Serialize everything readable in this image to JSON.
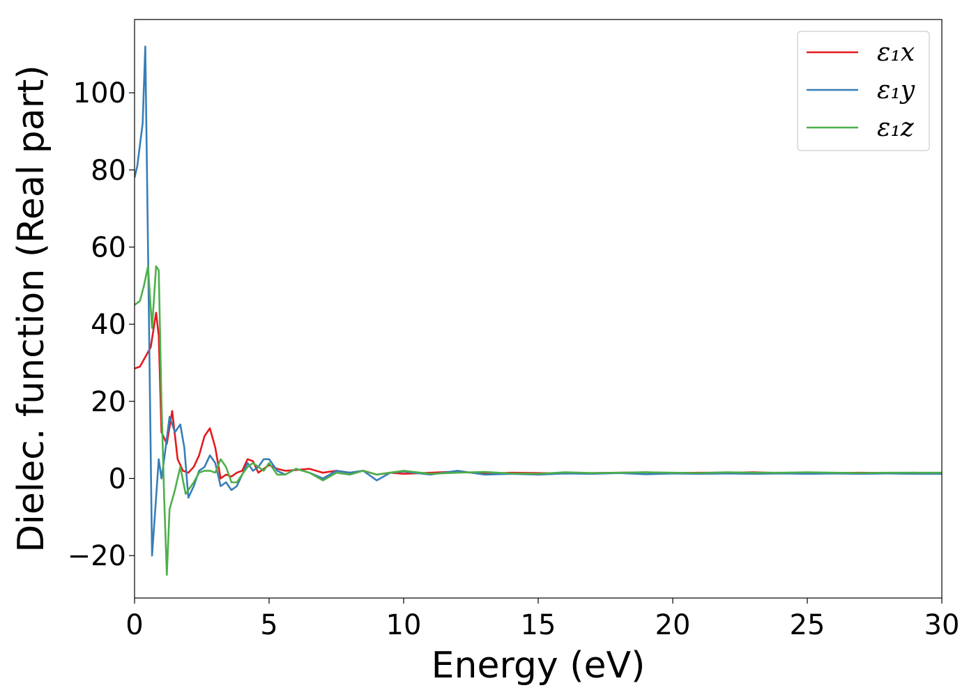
{
  "chart_data": {
    "type": "line",
    "xlabel": "Energy (eV)",
    "ylabel": "Dielec. function (Real part)",
    "xlim": [
      0,
      30
    ],
    "ylim": [
      -31,
      119
    ],
    "xticks": [
      0,
      5,
      10,
      15,
      20,
      25,
      30
    ],
    "xtick_labels": [
      "0",
      "5",
      "10",
      "15",
      "20",
      "25",
      "30"
    ],
    "yticks": [
      -20,
      0,
      20,
      40,
      60,
      80,
      100
    ],
    "ytick_labels": [
      "−20",
      "0",
      "20",
      "40",
      "60",
      "80",
      "100"
    ],
    "grid": false,
    "legend": {
      "position": "top-right"
    },
    "series": [
      {
        "name": "ε₁x",
        "color": "#e41a1c",
        "x": [
          0,
          0.2,
          0.4,
          0.6,
          0.8,
          0.9,
          1.0,
          1.2,
          1.4,
          1.6,
          1.8,
          2.0,
          2.2,
          2.4,
          2.6,
          2.8,
          3.0,
          3.2,
          3.4,
          3.6,
          3.8,
          4.0,
          4.2,
          4.4,
          4.6,
          4.8,
          5.0,
          5.3,
          5.6,
          6.0,
          6.5,
          7.0,
          7.5,
          8.0,
          8.5,
          9.0,
          9.5,
          10,
          11,
          12,
          13,
          14,
          15,
          16,
          17,
          18,
          19,
          20,
          21,
          22,
          23,
          24,
          25,
          26,
          27,
          28,
          29,
          30
        ],
        "y": [
          28.5,
          29,
          31.5,
          34,
          43,
          37,
          12,
          9,
          17.5,
          5,
          2,
          1.5,
          3,
          6,
          11,
          13,
          8,
          0,
          1,
          0.5,
          1.5,
          2,
          5,
          4.5,
          1.5,
          2.5,
          3.5,
          2.5,
          2,
          2.2,
          2.5,
          1.5,
          2,
          1.5,
          2,
          1,
          1.5,
          1.2,
          1.5,
          1.8,
          1.2,
          1.5,
          1.4,
          1.3,
          1.4,
          1.5,
          1.6,
          1.4,
          1.5,
          1.5,
          1.6,
          1.4,
          1.5,
          1.4,
          1.5,
          1.4,
          1.5,
          1.3
        ]
      },
      {
        "name": "ε₁y",
        "color": "#377eb8",
        "x": [
          0,
          0.1,
          0.3,
          0.4,
          0.5,
          0.65,
          0.8,
          0.9,
          1.0,
          1.1,
          1.3,
          1.5,
          1.7,
          1.85,
          2.0,
          2.2,
          2.4,
          2.6,
          2.8,
          3.0,
          3.2,
          3.4,
          3.6,
          3.8,
          4.0,
          4.2,
          4.4,
          4.6,
          4.8,
          5.0,
          5.3,
          5.6,
          6.0,
          6.5,
          7.0,
          7.5,
          8.0,
          8.5,
          9.0,
          9.5,
          10,
          11,
          12,
          13,
          14,
          15,
          16,
          17,
          18,
          19,
          20,
          21,
          22,
          23,
          24,
          25,
          26,
          27,
          28,
          29,
          30
        ],
        "y": [
          78,
          81,
          92,
          112,
          60,
          -20,
          -5,
          5,
          0,
          5,
          16,
          12,
          14,
          8,
          -5,
          -2,
          2,
          3,
          6,
          4,
          -2,
          -1,
          -3,
          -2,
          1,
          4,
          2,
          3,
          5,
          5,
          2,
          1,
          2.5,
          1.5,
          0,
          2,
          1.5,
          2,
          -0.5,
          1.5,
          1.8,
          1,
          2,
          1,
          1.2,
          1,
          1.3,
          1.2,
          1.4,
          1.1,
          1.3,
          1.2,
          1.3,
          1.2,
          1.3,
          1.2,
          1.3,
          1.2,
          1.3,
          1.2,
          1.2
        ]
      },
      {
        "name": "ε₁z",
        "color": "#4daf4a",
        "x": [
          0,
          0.2,
          0.35,
          0.5,
          0.65,
          0.8,
          0.9,
          1.0,
          1.1,
          1.2,
          1.3,
          1.5,
          1.7,
          1.9,
          2.0,
          2.2,
          2.4,
          2.6,
          2.8,
          3.0,
          3.2,
          3.4,
          3.6,
          3.8,
          4.0,
          4.2,
          4.4,
          4.6,
          4.8,
          5.0,
          5.3,
          5.6,
          6.0,
          6.5,
          7.0,
          7.5,
          8.0,
          8.5,
          9.0,
          9.5,
          10,
          11,
          12,
          13,
          14,
          15,
          16,
          17,
          18,
          19,
          20,
          21,
          22,
          23,
          24,
          25,
          26,
          27,
          28,
          29,
          30
        ],
        "y": [
          45,
          46,
          50,
          55,
          39,
          55,
          54,
          20,
          -5,
          -25,
          -8,
          -3,
          3,
          -4,
          -3,
          -1,
          1.5,
          2,
          2,
          1.5,
          5,
          3,
          -1,
          -1,
          1,
          3,
          4,
          3,
          2,
          4,
          1,
          1,
          2.5,
          1.5,
          -0.5,
          1.5,
          1,
          2,
          1,
          1.5,
          2,
          1.2,
          1.5,
          1.7,
          1.3,
          1.2,
          1.6,
          1.4,
          1.5,
          1.6,
          1.5,
          1.4,
          1.6,
          1.5,
          1.5,
          1.6,
          1.5,
          1.4,
          1.5,
          1.5,
          1.5
        ]
      }
    ]
  }
}
